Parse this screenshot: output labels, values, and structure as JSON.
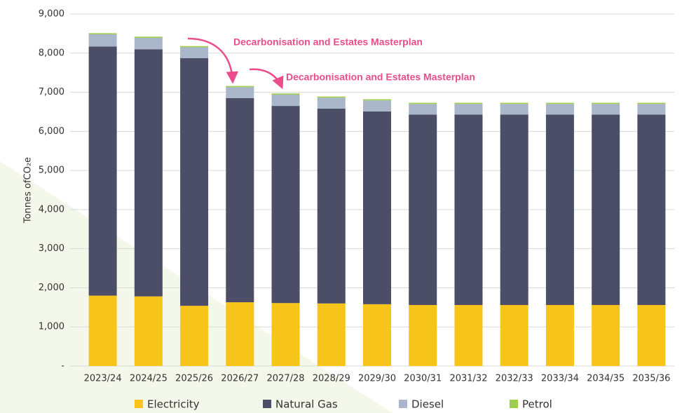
{
  "chart_data": {
    "type": "stacked_bar",
    "ylabel": "Tonnes ofCO₂e",
    "categories": [
      "2023/24",
      "2024/25",
      "2025/26",
      "2026/27",
      "2027/28",
      "2028/29",
      "2029/30",
      "2030/31",
      "2031/32",
      "2032/33",
      "2033/34",
      "2034/35",
      "2035/36"
    ],
    "series": [
      {
        "name": "Electricity",
        "color": "#f7c519",
        "values": [
          1800,
          1780,
          1540,
          1630,
          1610,
          1600,
          1580,
          1560,
          1560,
          1560,
          1560,
          1560,
          1560
        ]
      },
      {
        "name": "Natural Gas",
        "color": "#4b4e66",
        "values": [
          6370,
          6320,
          6330,
          5220,
          5040,
          4980,
          4930,
          4870,
          4870,
          4870,
          4870,
          4870,
          4870
        ]
      },
      {
        "name": "Diesel",
        "color": "#aab7cb",
        "values": [
          310,
          290,
          280,
          280,
          290,
          280,
          280,
          270,
          270,
          270,
          270,
          270,
          270
        ]
      },
      {
        "name": "Petrol",
        "color": "#9ccd4f",
        "values": [
          30,
          30,
          30,
          30,
          30,
          30,
          30,
          30,
          30,
          30,
          30,
          30,
          30
        ]
      }
    ],
    "ylim": [
      0,
      9000
    ],
    "yticks": [
      {
        "value": 0,
        "label": "-"
      },
      {
        "value": 1000,
        "label": "1,000"
      },
      {
        "value": 2000,
        "label": "2,000"
      },
      {
        "value": 3000,
        "label": "3,000"
      },
      {
        "value": 4000,
        "label": "4,000"
      },
      {
        "value": 5000,
        "label": "5,000"
      },
      {
        "value": 6000,
        "label": "6,000"
      },
      {
        "value": 7000,
        "label": "7,000"
      },
      {
        "value": 8000,
        "label": "8,000"
      },
      {
        "value": 9000,
        "label": "9,000"
      }
    ],
    "grid": true,
    "annotations": [
      "Decarbonisation and Estates Masterplan",
      "Decarbonisation and Estates Masterplan"
    ]
  }
}
